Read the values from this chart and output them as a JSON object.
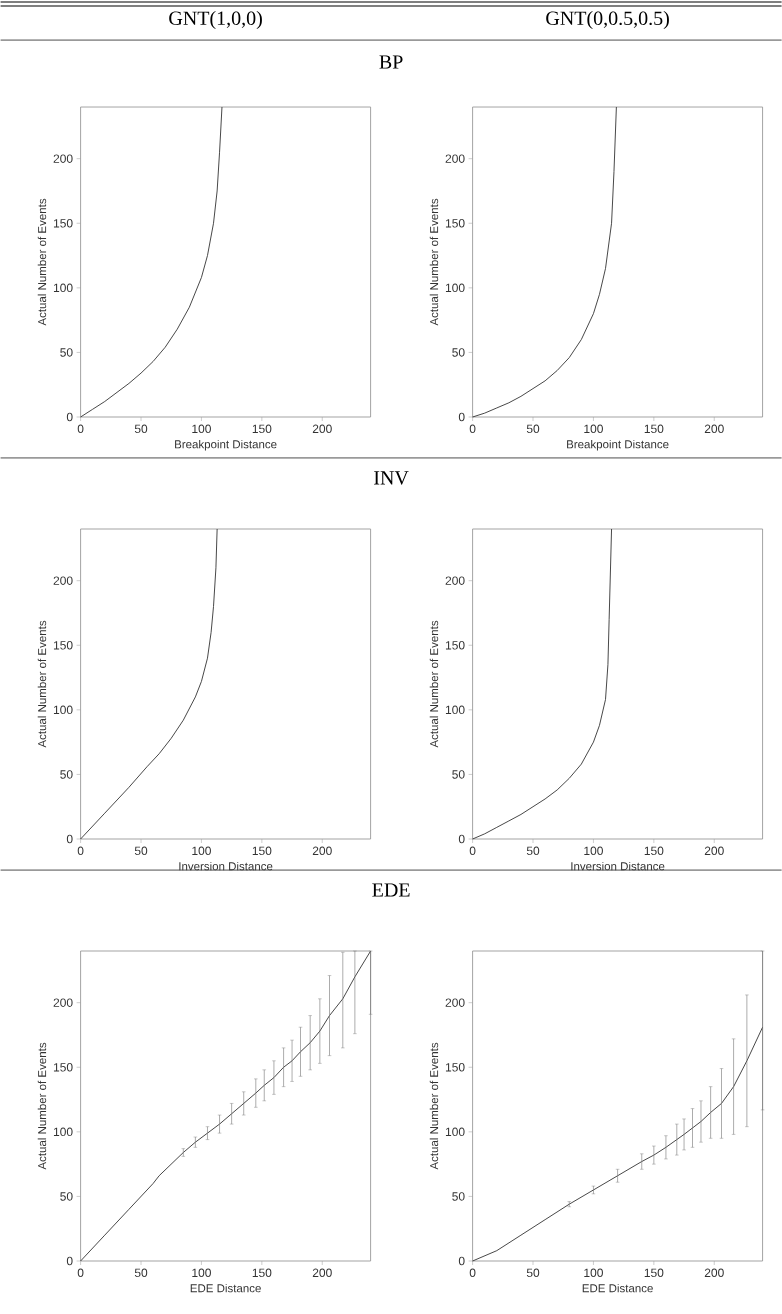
{
  "chart_data": [
    {
      "type": "line",
      "title": "GNT(1,0,0)",
      "subtitle": "BP",
      "xlabel": "Breakpoint Distance",
      "ylabel": "Actual Number of Events",
      "color": "#333333",
      "xlim": [
        0,
        240
      ],
      "ylim": [
        0,
        240
      ],
      "xticks": [
        0,
        50,
        100,
        150,
        200
      ],
      "yticks": [
        0,
        50,
        100,
        150,
        200
      ],
      "x": [
        0,
        10,
        20,
        30,
        40,
        50,
        60,
        70,
        80,
        90,
        100,
        105,
        110,
        113,
        115,
        117
      ],
      "values": [
        0,
        6,
        12,
        19,
        26,
        34,
        43,
        54,
        68,
        85,
        108,
        125,
        150,
        175,
        205,
        240
      ]
    },
    {
      "type": "line",
      "title": "GNT(0,0.5,0.5)",
      "xlabel": "Breakpoint Distance",
      "ylabel": "Actual Number of Events",
      "color": "#333333",
      "xlim": [
        0,
        240
      ],
      "ylim": [
        0,
        240
      ],
      "xticks": [
        0,
        50,
        100,
        150,
        200
      ],
      "yticks": [
        0,
        50,
        100,
        150,
        200
      ],
      "x": [
        0,
        10,
        20,
        30,
        40,
        50,
        60,
        70,
        80,
        90,
        100,
        105,
        110,
        115,
        117,
        119
      ],
      "values": [
        0,
        3,
        7,
        11,
        16,
        22,
        28,
        36,
        46,
        60,
        80,
        95,
        115,
        150,
        190,
        240
      ]
    },
    {
      "type": "line",
      "title": "INV",
      "xlabel": "Inversion Distance",
      "ylabel": "Actual Number of Events",
      "color": "#333333",
      "xlim": [
        0,
        240
      ],
      "ylim": [
        0,
        240
      ],
      "xticks": [
        0,
        50,
        100,
        150,
        200
      ],
      "yticks": [
        0,
        50,
        100,
        150,
        200
      ],
      "x": [
        0,
        20,
        40,
        55,
        65,
        75,
        85,
        95,
        100,
        105,
        108,
        110,
        112,
        113
      ],
      "values": [
        0,
        20,
        40,
        56,
        66,
        78,
        92,
        110,
        122,
        140,
        160,
        180,
        210,
        240
      ]
    },
    {
      "type": "line",
      "xlabel": "Inversion Distance",
      "ylabel": "Actual Number of Events",
      "color": "#333333",
      "xlim": [
        0,
        240
      ],
      "ylim": [
        0,
        240
      ],
      "xticks": [
        0,
        50,
        100,
        150,
        200
      ],
      "yticks": [
        0,
        50,
        100,
        150,
        200
      ],
      "x": [
        0,
        10,
        20,
        30,
        40,
        50,
        60,
        70,
        80,
        90,
        100,
        105,
        110,
        112,
        113,
        115
      ],
      "values": [
        0,
        4,
        9,
        14,
        19,
        25,
        31,
        38,
        47,
        58,
        75,
        88,
        108,
        135,
        170,
        240
      ]
    },
    {
      "type": "line",
      "title": "EDE",
      "xlabel": "EDE Distance",
      "ylabel": "Actual Number of Events",
      "color": "#333333",
      "xlim": [
        0,
        240
      ],
      "ylim": [
        0,
        240
      ],
      "xticks": [
        0,
        50,
        100,
        150,
        200
      ],
      "yticks": [
        0,
        50,
        100,
        150,
        200
      ],
      "x": [
        0,
        20,
        40,
        60,
        65,
        75,
        85,
        95,
        105,
        115,
        125,
        135,
        145,
        152,
        160,
        168,
        175,
        182,
        190,
        198,
        206,
        217,
        227,
        240
      ],
      "values": [
        0,
        20,
        40,
        60,
        66,
        75,
        84,
        92,
        99,
        106,
        114,
        122,
        130,
        136,
        142,
        150,
        155,
        162,
        169,
        178,
        190,
        203,
        220,
        240
      ],
      "errors": [
        null,
        null,
        null,
        null,
        null,
        null,
        3,
        4,
        5,
        7,
        8,
        9,
        11,
        12,
        13,
        15,
        16,
        19,
        21,
        25,
        31,
        [
          165,
          239
        ],
        [
          176,
          240
        ],
        [
          191,
          240
        ]
      ]
    },
    {
      "type": "line",
      "xlabel": "EDE Distance",
      "ylabel": "Actual Number of Events",
      "color": "#333333",
      "xlim": [
        0,
        240
      ],
      "ylim": [
        0,
        240
      ],
      "xticks": [
        0,
        50,
        100,
        150,
        200
      ],
      "yticks": [
        0,
        50,
        100,
        150,
        200
      ],
      "x": [
        0,
        20,
        40,
        60,
        80,
        100,
        120,
        140,
        150,
        160,
        169,
        175,
        182,
        189,
        197,
        206,
        216,
        227,
        240
      ],
      "values": [
        0,
        8,
        20,
        32,
        44,
        55,
        66,
        77,
        82,
        88,
        94,
        98,
        103,
        108,
        115,
        122,
        135,
        155,
        181
      ],
      "errors": [
        null,
        null,
        null,
        null,
        2,
        3,
        5,
        6,
        7,
        9,
        12,
        12,
        15,
        16,
        20,
        27,
        37,
        51,
        [
          117,
          240
        ]
      ]
    }
  ]
}
